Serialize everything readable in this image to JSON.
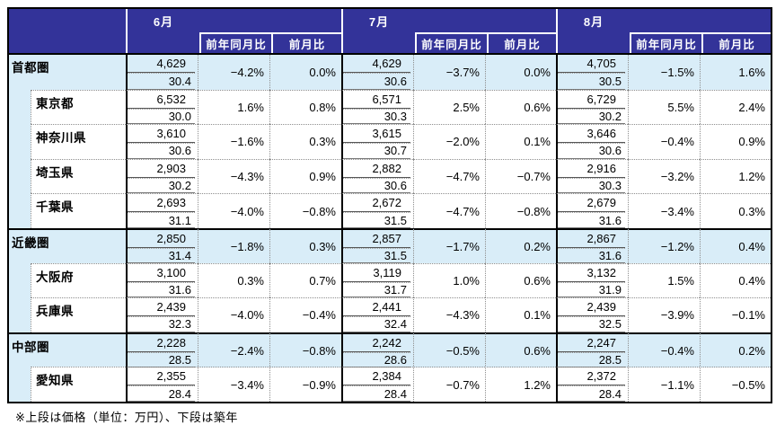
{
  "header": {
    "months": [
      "6月",
      "7月",
      "8月"
    ],
    "col_yoy": "前年同月比",
    "col_mom": "前月比"
  },
  "footnote": "※上段は価格（単位：万円）、下段は築年",
  "colors": {
    "header_bg": "#333399",
    "header_text": "#ffffff",
    "region_row_bg": "#d9edf8",
    "grid_black": "#000000",
    "grid_dotted": "#8e8e8e"
  },
  "table": {
    "value_semantics": {
      "top": "価格（万円）",
      "bottom": "築年",
      "col2": "前年同月比",
      "col3": "前月比"
    },
    "rows": [
      {
        "label": "首都圏",
        "level": "region",
        "separator": "none",
        "months": [
          {
            "price": "4,629",
            "age": "30.4",
            "yoy": "−4.2%",
            "mom": "0.0%"
          },
          {
            "price": "4,629",
            "age": "30.6",
            "yoy": "−3.7%",
            "mom": "0.0%"
          },
          {
            "price": "4,705",
            "age": "30.5",
            "yoy": "−1.5%",
            "mom": "1.6%"
          }
        ]
      },
      {
        "label": "東京都",
        "level": "pref",
        "separator": "dot",
        "months": [
          {
            "price": "6,532",
            "age": "30.0",
            "yoy": "1.6%",
            "mom": "0.8%"
          },
          {
            "price": "6,571",
            "age": "30.3",
            "yoy": "2.5%",
            "mom": "0.6%"
          },
          {
            "price": "6,729",
            "age": "30.2",
            "yoy": "5.5%",
            "mom": "2.4%"
          }
        ]
      },
      {
        "label": "神奈川県",
        "level": "pref",
        "separator": "dot",
        "months": [
          {
            "price": "3,610",
            "age": "30.6",
            "yoy": "−1.6%",
            "mom": "0.3%"
          },
          {
            "price": "3,615",
            "age": "30.7",
            "yoy": "−2.0%",
            "mom": "0.1%"
          },
          {
            "price": "3,646",
            "age": "30.6",
            "yoy": "−0.4%",
            "mom": "0.9%"
          }
        ]
      },
      {
        "label": "埼玉県",
        "level": "pref",
        "separator": "dot",
        "months": [
          {
            "price": "2,903",
            "age": "30.2",
            "yoy": "−4.3%",
            "mom": "0.9%"
          },
          {
            "price": "2,882",
            "age": "30.6",
            "yoy": "−4.7%",
            "mom": "−0.7%"
          },
          {
            "price": "2,916",
            "age": "30.3",
            "yoy": "−3.2%",
            "mom": "1.2%"
          }
        ]
      },
      {
        "label": "千葉県",
        "level": "pref",
        "separator": "dot",
        "months": [
          {
            "price": "2,693",
            "age": "31.1",
            "yoy": "−4.0%",
            "mom": "−0.8%"
          },
          {
            "price": "2,672",
            "age": "31.5",
            "yoy": "−4.7%",
            "mom": "−0.8%"
          },
          {
            "price": "2,679",
            "age": "31.6",
            "yoy": "−3.4%",
            "mom": "0.3%"
          }
        ]
      },
      {
        "label": "近畿圏",
        "level": "region",
        "separator": "solid",
        "months": [
          {
            "price": "2,850",
            "age": "31.4",
            "yoy": "−1.8%",
            "mom": "0.3%"
          },
          {
            "price": "2,857",
            "age": "31.5",
            "yoy": "−1.7%",
            "mom": "0.2%"
          },
          {
            "price": "2,867",
            "age": "31.6",
            "yoy": "−1.2%",
            "mom": "0.4%"
          }
        ]
      },
      {
        "label": "大阪府",
        "level": "pref",
        "separator": "dot",
        "months": [
          {
            "price": "3,100",
            "age": "31.6",
            "yoy": "0.3%",
            "mom": "0.7%"
          },
          {
            "price": "3,119",
            "age": "31.7",
            "yoy": "1.0%",
            "mom": "0.6%"
          },
          {
            "price": "3,132",
            "age": "31.9",
            "yoy": "1.5%",
            "mom": "0.4%"
          }
        ]
      },
      {
        "label": "兵庫県",
        "level": "pref",
        "separator": "dot",
        "months": [
          {
            "price": "2,439",
            "age": "32.3",
            "yoy": "−4.0%",
            "mom": "−0.4%"
          },
          {
            "price": "2,441",
            "age": "32.4",
            "yoy": "−4.3%",
            "mom": "0.1%"
          },
          {
            "price": "2,439",
            "age": "32.5",
            "yoy": "−3.9%",
            "mom": "−0.1%"
          }
        ]
      },
      {
        "label": "中部圏",
        "level": "region",
        "separator": "solid",
        "months": [
          {
            "price": "2,228",
            "age": "28.5",
            "yoy": "−2.4%",
            "mom": "−0.8%"
          },
          {
            "price": "2,242",
            "age": "28.6",
            "yoy": "−0.5%",
            "mom": "0.6%"
          },
          {
            "price": "2,247",
            "age": "28.5",
            "yoy": "−0.4%",
            "mom": "0.2%"
          }
        ]
      },
      {
        "label": "愛知県",
        "level": "pref",
        "separator": "dot",
        "months": [
          {
            "price": "2,355",
            "age": "28.4",
            "yoy": "−3.4%",
            "mom": "−0.9%"
          },
          {
            "price": "2,384",
            "age": "28.4",
            "yoy": "−0.7%",
            "mom": "1.2%"
          },
          {
            "price": "2,372",
            "age": "28.4",
            "yoy": "−1.1%",
            "mom": "−0.5%"
          }
        ]
      }
    ]
  }
}
